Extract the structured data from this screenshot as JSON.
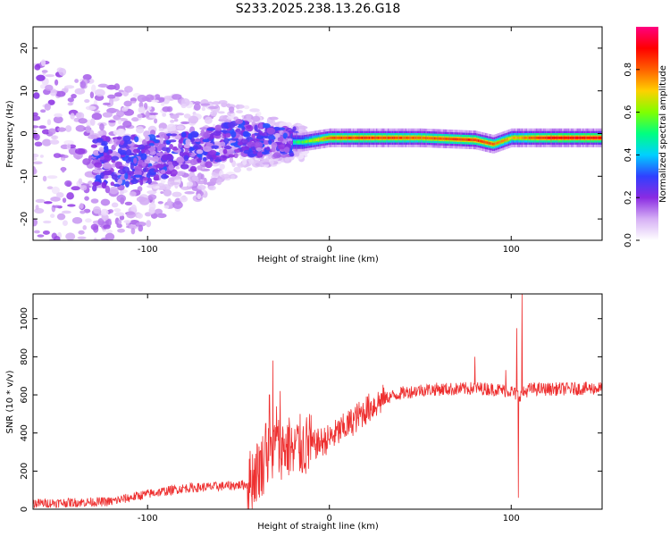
{
  "title": "S233.2025.238.13.26.G18",
  "chart_data": [
    {
      "type": "heatmap",
      "xlabel": "Height of straight line (km)",
      "ylabel": "Frequency (Hz)",
      "xlim": [
        -163,
        150
      ],
      "ylim": [
        -25,
        25
      ],
      "xticks": [
        -100,
        0,
        100
      ],
      "yticks": [
        -20,
        -10,
        0,
        10,
        20
      ],
      "colorbar": {
        "label": "Normalized spectral amplitude",
        "range": [
          0,
          1
        ],
        "ticks": [
          "0.0",
          "0.2",
          "0.4",
          "0.6",
          "0.8"
        ],
        "colors": [
          "#ffffff",
          "#d6b0f5",
          "#8a2be2",
          "#3040ff",
          "#00d0ff",
          "#00ff80",
          "#80ff00",
          "#ffd000",
          "#ff6000",
          "#ff0000",
          "#ff0080"
        ]
      },
      "ridge": {
        "description_points_x": [
          -130,
          -100,
          -75,
          -50,
          -30,
          -15,
          0,
          20,
          50,
          80,
          90,
          100,
          120,
          150
        ],
        "description_points_f": [
          -7,
          -6,
          -4,
          -1,
          -2,
          -2,
          -1,
          -1,
          -1,
          -1.5,
          -2.5,
          -1,
          -1,
          -1
        ],
        "description_points_amp": [
          0.2,
          0.25,
          0.3,
          0.35,
          0.4,
          0.55,
          0.8,
          0.85,
          0.8,
          0.85,
          0.8,
          0.7,
          0.9,
          0.9
        ]
      }
    },
    {
      "type": "line",
      "xlabel": "Height of straight line (km)",
      "ylabel": "SNR (10 * v/v)",
      "xlim": [
        -163,
        150
      ],
      "ylim": [
        0,
        1130
      ],
      "xticks": [
        -100,
        0,
        100
      ],
      "yticks": [
        0,
        200,
        400,
        600,
        800,
        1000
      ],
      "series": [
        {
          "name": "SNR",
          "color": "#ee3030",
          "envelope_x": [
            -163,
            -120,
            -100,
            -80,
            -60,
            -45,
            -40,
            -30,
            -20,
            -10,
            0,
            10,
            20,
            30,
            40,
            50,
            60,
            70,
            80,
            90,
            100,
            103,
            105,
            110,
            120,
            150
          ],
          "envelope_y": [
            30,
            40,
            80,
            110,
            120,
            130,
            200,
            320,
            330,
            330,
            370,
            440,
            520,
            580,
            610,
            625,
            630,
            630,
            635,
            630,
            620,
            600,
            600,
            630,
            630,
            635
          ],
          "spikes_x": [
            -35,
            -33,
            -31,
            -29,
            -27,
            -25,
            -22,
            -20,
            -11,
            80,
            97,
            103,
            104,
            106
          ],
          "spikes_y": [
            450,
            600,
            780,
            540,
            620,
            300,
            440,
            200,
            500,
            800,
            730,
            950,
            60,
            1130
          ]
        }
      ]
    }
  ]
}
